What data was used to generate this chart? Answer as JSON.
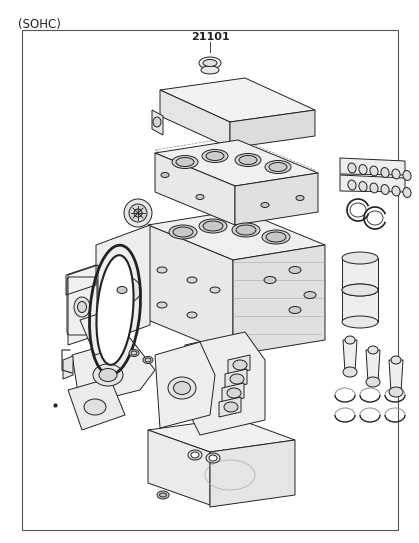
{
  "title_top_left": "(SOHC)",
  "part_number": "21101",
  "background_color": "#ffffff",
  "border_color": "#555555",
  "text_color": "#222222",
  "title_fontsize": 8.5,
  "part_number_fontsize": 8,
  "fig_width": 4.19,
  "fig_height": 5.43,
  "dpi": 100,
  "line_color": "#222222",
  "fill_color": "#f5f5f5",
  "fill_dark": "#e0e0e0",
  "fill_mid": "#ececec"
}
